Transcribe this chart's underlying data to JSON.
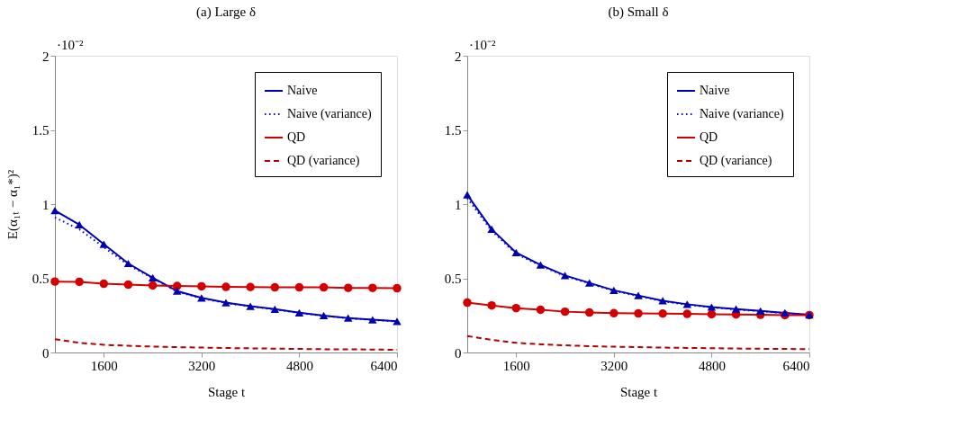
{
  "chart_data": [
    {
      "type": "line",
      "title": "(a) Large δ",
      "xlabel": "Stage t",
      "ylabel": "E(α₁ₜ − α₁*)²",
      "annotations": [
        "·10⁻²"
      ],
      "x": [
        800,
        1200,
        1600,
        2000,
        2400,
        2800,
        3200,
        3600,
        4000,
        4400,
        4800,
        5200,
        5600,
        6000,
        6400
      ],
      "xlim": [
        800,
        6400
      ],
      "xticks": [
        1600,
        3200,
        4800,
        6400
      ],
      "ylim": [
        0,
        2
      ],
      "yticks": [
        0,
        0.5,
        1,
        1.5,
        2
      ],
      "grid": false,
      "legend": "top right",
      "series": [
        {
          "name": "Naive",
          "color": "#0000b3",
          "marker": "triangle",
          "line_style": "solid",
          "values": [
            0.957,
            0.861,
            0.73,
            0.6,
            0.504,
            0.414,
            0.368,
            0.336,
            0.312,
            0.292,
            0.268,
            0.249,
            0.232,
            0.221,
            0.21
          ]
        },
        {
          "name": "Naive (variance)",
          "color": "#0000e6",
          "marker": "none",
          "line_style": "dotted",
          "values": [
            0.91,
            0.83,
            0.71,
            0.59,
            0.5,
            0.41,
            0.365,
            0.333,
            0.31,
            0.29,
            0.266,
            0.247,
            0.23,
            0.22,
            0.208
          ]
        },
        {
          "name": "QD",
          "color": "#d40000",
          "marker": "circle",
          "line_style": "solid",
          "values": [
            0.478,
            0.476,
            0.463,
            0.457,
            0.452,
            0.448,
            0.446,
            0.442,
            0.441,
            0.439,
            0.439,
            0.439,
            0.435,
            0.435,
            0.433
          ]
        },
        {
          "name": "QD (variance)",
          "color": "#b30000",
          "marker": "none",
          "line_style": "dashed",
          "values": [
            0.09,
            0.065,
            0.052,
            0.045,
            0.04,
            0.036,
            0.033,
            0.03,
            0.028,
            0.026,
            0.024,
            0.022,
            0.021,
            0.02,
            0.018
          ]
        }
      ]
    },
    {
      "type": "line",
      "title": "(b) Small δ",
      "xlabel": "Stage t",
      "annotations": [
        "·10⁻²"
      ],
      "x": [
        800,
        1200,
        1600,
        2000,
        2400,
        2800,
        3200,
        3600,
        4000,
        4400,
        4800,
        5200,
        5600,
        6000,
        6400
      ],
      "xlim": [
        800,
        6400
      ],
      "xticks": [
        1600,
        3200,
        4800,
        6400
      ],
      "ylim": [
        0,
        2
      ],
      "yticks": [
        0,
        0.5,
        1,
        1.5,
        2
      ],
      "grid": false,
      "legend": "top right",
      "series": [
        {
          "name": "Naive",
          "color": "#0000b3",
          "marker": "triangle",
          "line_style": "solid",
          "values": [
            1.063,
            0.831,
            0.673,
            0.59,
            0.519,
            0.469,
            0.419,
            0.384,
            0.349,
            0.325,
            0.306,
            0.293,
            0.28,
            0.267,
            0.254
          ]
        },
        {
          "name": "Naive (variance)",
          "color": "#0000e6",
          "marker": "none",
          "line_style": "dotted",
          "values": [
            1.04,
            0.82,
            0.665,
            0.585,
            0.515,
            0.465,
            0.415,
            0.38,
            0.345,
            0.322,
            0.303,
            0.29,
            0.278,
            0.265,
            0.252
          ]
        },
        {
          "name": "QD",
          "color": "#d40000",
          "marker": "circle",
          "line_style": "solid",
          "values": [
            0.336,
            0.317,
            0.299,
            0.288,
            0.275,
            0.269,
            0.265,
            0.263,
            0.262,
            0.26,
            0.258,
            0.256,
            0.254,
            0.252,
            0.252
          ]
        },
        {
          "name": "QD (variance)",
          "color": "#b30000",
          "marker": "none",
          "line_style": "dashed",
          "values": [
            0.111,
            0.085,
            0.065,
            0.055,
            0.048,
            0.043,
            0.039,
            0.036,
            0.033,
            0.031,
            0.029,
            0.027,
            0.025,
            0.024,
            0.022
          ]
        }
      ]
    }
  ]
}
